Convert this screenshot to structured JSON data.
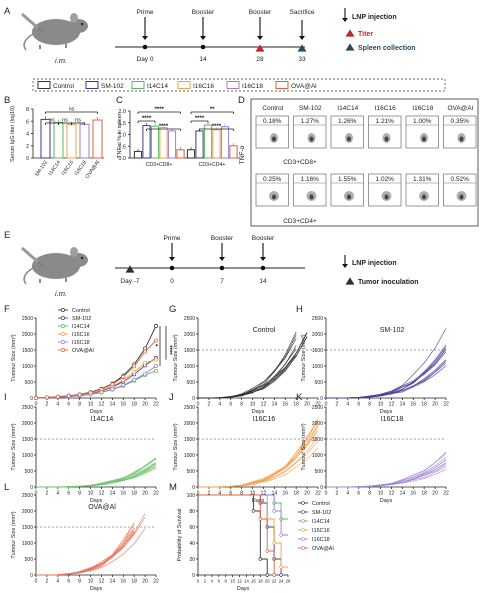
{
  "panelA": {
    "letter": "A",
    "route": "i.m.",
    "events": [
      {
        "label": "Prime",
        "day": "Day 0"
      },
      {
        "label": "Booster",
        "day": "14"
      },
      {
        "label": "Booster",
        "day": "28"
      },
      {
        "label": "Sacrifice",
        "day": "33"
      }
    ],
    "legend": {
      "injection": "LNP injection",
      "titer": "Titer",
      "spleen": "Spleen collection"
    },
    "colors": {
      "titer": "#c0272d",
      "spleen": "#2b4a5e"
    }
  },
  "groups": [
    {
      "name": "Control",
      "color": "#333333"
    },
    {
      "name": "SM-102",
      "color": "#3a3a8c"
    },
    {
      "name": "I14C14",
      "color": "#5cb85c"
    },
    {
      "name": "I16C16",
      "color": "#f0a046"
    },
    {
      "name": "I16C18",
      "color": "#9b7fd1"
    },
    {
      "name": "OVA@Al",
      "color": "#e2603a"
    }
  ],
  "panelB": {
    "letter": "B",
    "chart_data": {
      "type": "bar",
      "ylabel": "Serum IgG titer (log10)",
      "ylim": [
        0,
        8
      ],
      "yticks": [
        "0",
        "2",
        "4",
        "6",
        "8"
      ],
      "categories": [
        "SM-102",
        "I14C14",
        "I16C16",
        "I16C18",
        "OVA@Al"
      ],
      "values": [
        6.3,
        5.8,
        5.5,
        5.5,
        6.2
      ],
      "significance": [
        "ns",
        "ns",
        "ns",
        "ns"
      ]
    }
  },
  "panelC": {
    "letter": "C",
    "chart_data": {
      "type": "bar",
      "ylabel": "TNF-α % in spleen",
      "ylim": [
        0,
        2.0
      ],
      "yticks": [
        "0.0",
        "0.5",
        "1.0",
        "1.5",
        "2.0"
      ],
      "categories": [
        "CD3+CD8+",
        "CD3+CD4+"
      ],
      "series": [
        {
          "name": "Control",
          "values": [
            0.28,
            0.35
          ]
        },
        {
          "name": "SM-102",
          "values": [
            1.38,
            1.15
          ]
        },
        {
          "name": "I14C14",
          "values": [
            1.35,
            1.4
          ]
        },
        {
          "name": "I16C16",
          "values": [
            1.3,
            1.2
          ]
        },
        {
          "name": "I16C18",
          "values": [
            1.15,
            1.33
          ]
        },
        {
          "name": "OVA@Al",
          "values": [
            0.35,
            0.52
          ]
        }
      ],
      "significance": [
        "****",
        "****",
        "****",
        "**",
        "****",
        "****"
      ]
    }
  },
  "panelD": {
    "letter": "D",
    "yaxis": "TNF-α",
    "row1_label": "CD3+CD8+",
    "row2_label": "CD3+CD4+",
    "columns": [
      "Control",
      "SM-102",
      "I14C14",
      "I16C16",
      "I16C18",
      "OVA@Al"
    ],
    "row1_values": [
      "0.18%",
      "1.27%",
      "1.26%",
      "1.21%",
      "1.00%",
      "0.35%"
    ],
    "row2_values": [
      "0.25%",
      "1.16%",
      "1.55%",
      "1.02%",
      "1.31%",
      "0.52%"
    ]
  },
  "panelE": {
    "letter": "E",
    "route": "i.m.",
    "events": [
      {
        "label": "",
        "day": "Day -7"
      },
      {
        "label": "Prime",
        "day": "0"
      },
      {
        "label": "Booster",
        "day": "7"
      },
      {
        "label": "Booster",
        "day": "14"
      }
    ],
    "legend": {
      "injection": "LNP injection",
      "inoculation": "Tumor inoculation"
    }
  },
  "panelF": {
    "letter": "F",
    "chart_data": {
      "type": "line",
      "xlabel": "Days",
      "ylabel": "Tumour Size (mm³)",
      "xlim": [
        0,
        22
      ],
      "ylim": [
        0,
        2500
      ],
      "x": [
        0,
        2,
        4,
        6,
        8,
        10,
        12,
        14,
        16,
        18,
        20,
        22
      ],
      "series": [
        {
          "name": "Control",
          "values": [
            0,
            20,
            40,
            70,
            110,
            180,
            290,
            450,
            700,
            1050,
            1550,
            2250
          ]
        },
        {
          "name": "SM-102",
          "values": [
            0,
            15,
            30,
            55,
            85,
            140,
            220,
            340,
            510,
            740,
            1020,
            1250
          ]
        },
        {
          "name": "I14C14",
          "values": [
            0,
            12,
            25,
            45,
            70,
            110,
            170,
            260,
            380,
            540,
            720,
            850
          ]
        },
        {
          "name": "I16C16",
          "values": [
            0,
            15,
            30,
            55,
            90,
            150,
            240,
            370,
            560,
            810,
            1100,
            1200
          ]
        },
        {
          "name": "I16C18",
          "values": [
            0,
            12,
            25,
            45,
            72,
            115,
            180,
            275,
            400,
            570,
            760,
            1000
          ]
        },
        {
          "name": "OVA@Al",
          "values": [
            0,
            18,
            38,
            65,
            105,
            170,
            275,
            430,
            660,
            990,
            1450,
            1800
          ]
        }
      ],
      "significance": [
        "*",
        "****"
      ]
    }
  },
  "xticks": [
    "0",
    "2",
    "4",
    "6",
    "8",
    "10",
    "12",
    "14",
    "16",
    "18",
    "20",
    "22"
  ],
  "yticks_tumor": [
    "0",
    "500",
    "1000",
    "1500",
    "2000",
    "2500"
  ],
  "xlabel": "Days",
  "ylabel": "Tumour Size (mm³)",
  "spaghetti": {
    "G": {
      "letter": "G",
      "title": "Control",
      "color": "#2a2a2a",
      "chart_data": {
        "type": "line",
        "xlim": [
          0,
          22
        ],
        "ylim": [
          0,
          2500
        ],
        "threshold": 1500,
        "individual_curves": 10
      }
    },
    "H": {
      "letter": "H",
      "title": "SM-102",
      "color": "#4b3c9e",
      "chart_data": {
        "type": "line",
        "xlim": [
          0,
          22
        ],
        "ylim": [
          0,
          2500
        ],
        "threshold": 1500,
        "individual_curves": 10
      }
    },
    "I": {
      "letter": "I",
      "title": "I14C14",
      "color": "#6cc36c",
      "chart_data": {
        "type": "line",
        "xlim": [
          0,
          22
        ],
        "ylim": [
          0,
          2500
        ],
        "threshold": 1500,
        "individual_curves": 10
      }
    },
    "J": {
      "letter": "J",
      "title": "I16C16",
      "color": "#f3a24a",
      "chart_data": {
        "type": "line",
        "xlim": [
          0,
          22
        ],
        "ylim": [
          0,
          2500
        ],
        "threshold": 1500,
        "individual_curves": 10
      }
    },
    "K": {
      "letter": "K",
      "title": "I16C18",
      "color": "#a487d6",
      "chart_data": {
        "type": "line",
        "xlim": [
          0,
          22
        ],
        "ylim": [
          0,
          2500
        ],
        "threshold": 1500,
        "individual_curves": 10
      }
    },
    "L": {
      "letter": "L",
      "title": "OVA@Al",
      "color": "#e9735a",
      "chart_data": {
        "type": "line",
        "xlim": [
          0,
          22
        ],
        "ylim": [
          0,
          2500
        ],
        "threshold": 1500,
        "individual_curves": 10
      }
    }
  },
  "panelM": {
    "letter": "M",
    "chart_data": {
      "type": "line",
      "xlabel": "Days",
      "ylabel": "Probability of Survival",
      "xlim": [
        0,
        26
      ],
      "ylim": [
        0,
        100
      ],
      "xticks": [
        "0",
        "2",
        "4",
        "6",
        "8",
        "10",
        "12",
        "14",
        "16",
        "18",
        "20",
        "22",
        "24",
        "26"
      ],
      "yticks": [
        "0",
        "20",
        "40",
        "60",
        "80",
        "100"
      ],
      "series": [
        {
          "name": "Control",
          "steps": [
            [
              0,
              100
            ],
            [
              16,
              100
            ],
            [
              16,
              80
            ],
            [
              18,
              80
            ],
            [
              18,
              20
            ],
            [
              20,
              20
            ],
            [
              20,
              0
            ]
          ]
        },
        {
          "name": "SM-102",
          "steps": [
            [
              0,
              100
            ],
            [
              18,
              100
            ],
            [
              18,
              90
            ],
            [
              20,
              90
            ],
            [
              20,
              60
            ],
            [
              22,
              60
            ],
            [
              22,
              20
            ],
            [
              24,
              20
            ],
            [
              24,
              0
            ]
          ]
        },
        {
          "name": "I14C14",
          "steps": [
            [
              0,
              100
            ],
            [
              22,
              100
            ],
            [
              22,
              90
            ],
            [
              24,
              90
            ],
            [
              24,
              70
            ],
            [
              26,
              70
            ]
          ]
        },
        {
          "name": "I16C16",
          "steps": [
            [
              0,
              100
            ],
            [
              20,
              100
            ],
            [
              20,
              70
            ],
            [
              22,
              70
            ],
            [
              22,
              40
            ],
            [
              24,
              40
            ],
            [
              24,
              10
            ],
            [
              26,
              10
            ]
          ]
        },
        {
          "name": "I16C18",
          "steps": [
            [
              0,
              100
            ],
            [
              22,
              100
            ],
            [
              22,
              80
            ],
            [
              24,
              80
            ],
            [
              24,
              50
            ],
            [
              26,
              50
            ]
          ]
        },
        {
          "name": "OVA@Al",
          "steps": [
            [
              0,
              100
            ],
            [
              18,
              100
            ],
            [
              18,
              70
            ],
            [
              20,
              70
            ],
            [
              20,
              30
            ],
            [
              22,
              30
            ],
            [
              22,
              0
            ]
          ]
        }
      ]
    }
  }
}
